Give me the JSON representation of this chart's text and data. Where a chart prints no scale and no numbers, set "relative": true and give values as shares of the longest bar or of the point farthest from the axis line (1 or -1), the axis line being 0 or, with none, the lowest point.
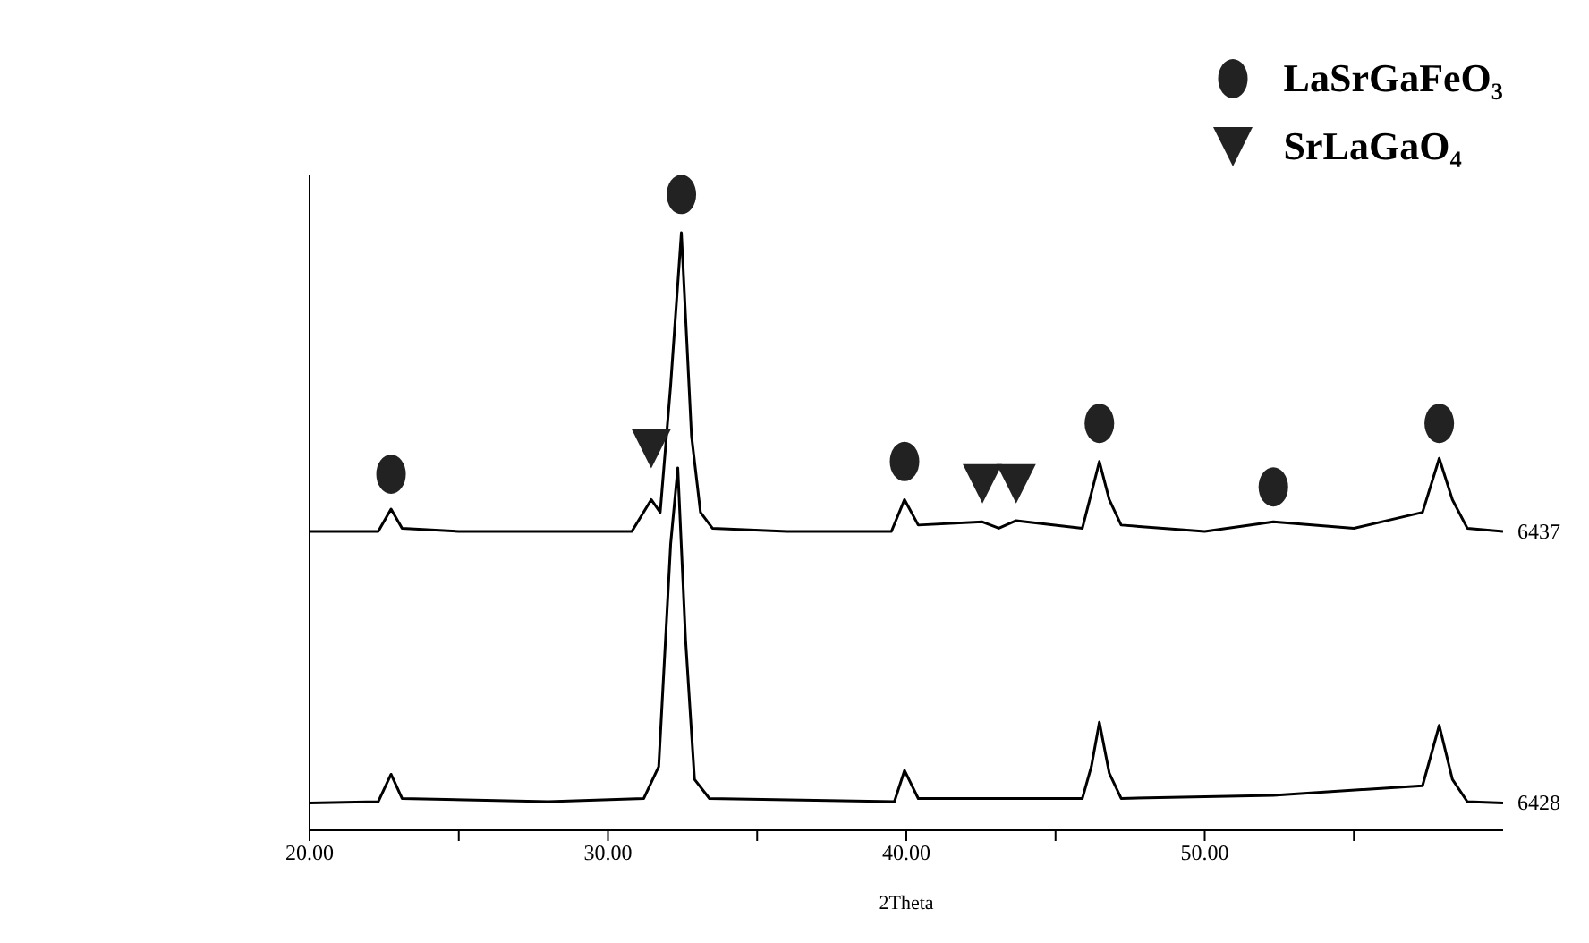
{
  "chart_data": {
    "type": "line",
    "xlabel": "2Theta",
    "relative": true,
    "xlim": [
      20,
      60
    ],
    "xticks": [
      {
        "value": 20,
        "label": "20.00"
      },
      {
        "value": 25,
        "label": null
      },
      {
        "value": 30,
        "label": "30.00"
      },
      {
        "value": 35,
        "label": null
      },
      {
        "value": 40,
        "label": "40.00"
      },
      {
        "value": 45,
        "label": null
      },
      {
        "value": 50,
        "label": "50.00"
      },
      {
        "value": 55,
        "label": null
      }
    ],
    "tick_labels": "x",
    "grid": false,
    "legend": "top right",
    "marker": "none",
    "line_style": "solid",
    "series": [
      {
        "name": "6437",
        "color": "#000000",
        "x": [
          20,
          22.3,
          22.73,
          23.1,
          25,
          28,
          30.8,
          31.45,
          31.75,
          32.1,
          32.46,
          32.8,
          33.1,
          33.5,
          36,
          39.5,
          39.94,
          40.4,
          42.55,
          43.1,
          43.68,
          45.9,
          46.2,
          46.47,
          46.8,
          47.2,
          50,
          52.3,
          55,
          57.3,
          57.86,
          58.3,
          58.8,
          60
        ],
        "values": [
          0.47,
          0.47,
          0.505,
          0.475,
          0.47,
          0.47,
          0.47,
          0.52,
          0.5,
          0.7,
          0.94,
          0.62,
          0.5,
          0.475,
          0.47,
          0.47,
          0.52,
          0.48,
          0.485,
          0.475,
          0.487,
          0.475,
          0.53,
          0.58,
          0.52,
          0.48,
          0.47,
          0.485,
          0.475,
          0.5,
          0.585,
          0.52,
          0.475,
          0.47
        ]
      },
      {
        "name": "6428",
        "color": "#000000",
        "x": [
          20,
          22.3,
          22.73,
          23.1,
          28,
          31.2,
          31.7,
          32.1,
          32.34,
          32.6,
          32.9,
          33.4,
          39.6,
          39.94,
          40.4,
          45.9,
          46.2,
          46.47,
          46.8,
          47.2,
          52.3,
          57.3,
          57.86,
          58.3,
          58.8,
          60
        ],
        "values": [
          0.043,
          0.045,
          0.088,
          0.05,
          0.045,
          0.05,
          0.1,
          0.45,
          0.57,
          0.3,
          0.08,
          0.05,
          0.045,
          0.094,
          0.05,
          0.05,
          0.1,
          0.17,
          0.09,
          0.05,
          0.055,
          0.07,
          0.165,
          0.08,
          0.045,
          0.043
        ]
      },
      {
        "name": "LaSrGaFeO₃",
        "type": "scatter",
        "marker": "circle",
        "color": "#222222",
        "x": [
          22.73,
          32.46,
          39.94,
          46.47,
          52.3,
          57.86
        ],
        "values": [
          0.56,
          1,
          0.58,
          0.64,
          0.54,
          0.64
        ]
      },
      {
        "name": "SrLaGaO₄",
        "type": "scatter",
        "marker": "triangle",
        "color": "#222222",
        "x": [
          31.45,
          42.55,
          43.68
        ],
        "values": [
          0.6,
          0.545,
          0.545
        ]
      }
    ]
  }
}
